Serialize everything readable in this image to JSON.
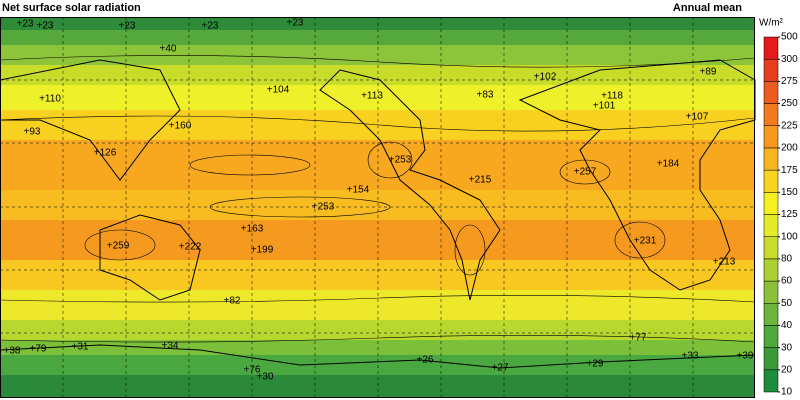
{
  "title": "Net surface solar radiation",
  "subtitle": "Annual mean",
  "colorbar": {
    "unit": "W/m²",
    "ticks": [
      10,
      20,
      30,
      40,
      50,
      60,
      80,
      100,
      125,
      150,
      175,
      200,
      225,
      250,
      275,
      300,
      500
    ],
    "colors": [
      "#1e8c3c",
      "#3a9a3a",
      "#4ea83a",
      "#6cb43a",
      "#8cc03a",
      "#aad034",
      "#c8dc2c",
      "#e4ec28",
      "#f5f020",
      "#f8d41e",
      "#f8b61e",
      "#f69a1e",
      "#f07c1e",
      "#ec5c1e",
      "#e83c1e",
      "#e41a1c"
    ]
  },
  "contour_labels": [
    "+23",
    "+23",
    "+23",
    "+23",
    "+23",
    "+40",
    "+110",
    "+93",
    "+126",
    "+160",
    "+104",
    "+113",
    "+83",
    "+102",
    "+118",
    "+101",
    "+107",
    "+89",
    "+253",
    "+215",
    "+154",
    "+253",
    "+257",
    "+184",
    "+163",
    "+199",
    "+222",
    "+259",
    "+231",
    "+213",
    "+82",
    "+77",
    "+38",
    "+79",
    "+31",
    "+34",
    "+76",
    "+30",
    "+26",
    "+27",
    "+29",
    "+33",
    "+39"
  ]
}
